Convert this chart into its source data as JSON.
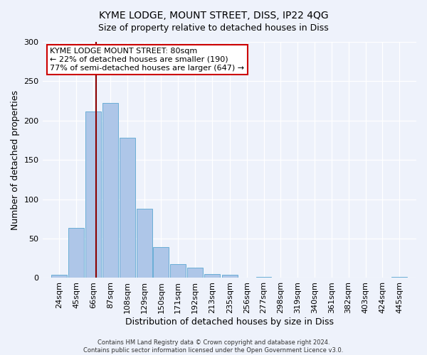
{
  "title": "KYME LODGE, MOUNT STREET, DISS, IP22 4QG",
  "subtitle": "Size of property relative to detached houses in Diss",
  "xlabel": "Distribution of detached houses by size in Diss",
  "ylabel": "Number of detached properties",
  "bar_color": "#aec6e8",
  "bar_edge_color": "#6aaed6",
  "background_color": "#eef2fb",
  "bin_labels": [
    "24sqm",
    "45sqm",
    "66sqm",
    "87sqm",
    "108sqm",
    "129sqm",
    "150sqm",
    "171sqm",
    "192sqm",
    "213sqm",
    "235sqm",
    "256sqm",
    "277sqm",
    "298sqm",
    "319sqm",
    "340sqm",
    "361sqm",
    "382sqm",
    "403sqm",
    "424sqm",
    "445sqm"
  ],
  "bar_values": [
    4,
    64,
    212,
    222,
    178,
    88,
    39,
    18,
    13,
    5,
    4,
    0,
    1,
    0,
    0,
    0,
    0,
    0,
    0,
    0,
    1
  ],
  "bin_edges": [
    24,
    45,
    66,
    87,
    108,
    129,
    150,
    171,
    192,
    213,
    235,
    256,
    277,
    298,
    319,
    340,
    361,
    382,
    403,
    424,
    445
  ],
  "bin_width": 21,
  "ylim": [
    0,
    300
  ],
  "yticks": [
    0,
    50,
    100,
    150,
    200,
    250,
    300
  ],
  "property_size": 80,
  "vline_color": "#8b0000",
  "annotation_title": "KYME LODGE MOUNT STREET: 80sqm",
  "annotation_line2": "← 22% of detached houses are smaller (190)",
  "annotation_line3": "77% of semi-detached houses are larger (647) →",
  "annotation_box_facecolor": "#ffffff",
  "annotation_box_edgecolor": "#cc0000",
  "footer_line1": "Contains HM Land Registry data © Crown copyright and database right 2024.",
  "footer_line2": "Contains public sector information licensed under the Open Government Licence v3.0."
}
